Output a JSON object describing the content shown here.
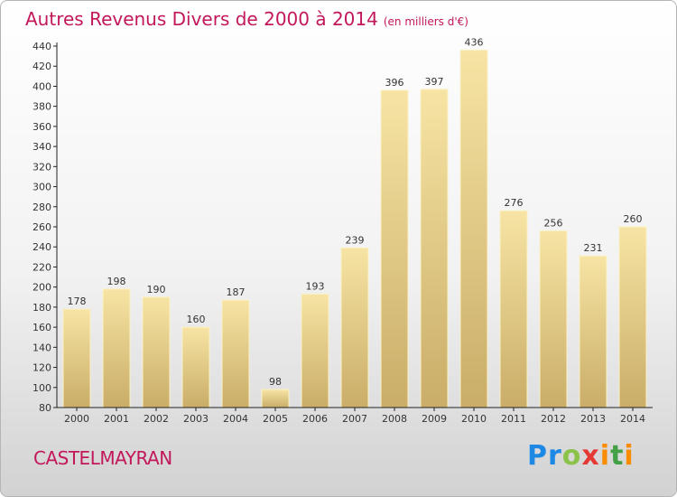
{
  "title": "Autres Revenus Divers de 2000 à 2014",
  "subtitle": "(en milliers d'€)",
  "commune": "CASTELMAYRAN",
  "logo": {
    "letters": [
      "P",
      "r",
      "o",
      "x",
      "i",
      "t",
      "i"
    ],
    "colors": [
      "#1e88e5",
      "#1e88e5",
      "#8bc34a",
      "#e53935",
      "#fb8c00",
      "#43a047",
      "#fb8c00"
    ]
  },
  "colors": {
    "title": "#c2185b",
    "bar_top": "#f7e4a4",
    "bar_bottom": "#c9ad68",
    "axis": "#222222"
  },
  "chart_data": {
    "type": "bar",
    "title": "Autres Revenus Divers de 2000 à 2014",
    "subtitle": "(en milliers d'€)",
    "xlabel": "",
    "ylabel": "",
    "categories": [
      "2000",
      "2001",
      "2002",
      "2003",
      "2004",
      "2005",
      "2006",
      "2007",
      "2008",
      "2009",
      "2010",
      "2011",
      "2012",
      "2013",
      "2014"
    ],
    "values": [
      178,
      198,
      190,
      160,
      187,
      98,
      193,
      239,
      396,
      397,
      436,
      276,
      256,
      231,
      260
    ],
    "ylim": [
      80,
      440
    ],
    "yticks": [
      80,
      100,
      120,
      140,
      160,
      180,
      200,
      220,
      240,
      260,
      280,
      300,
      320,
      340,
      360,
      380,
      400,
      420,
      440
    ],
    "grid": false,
    "legend": "none"
  }
}
